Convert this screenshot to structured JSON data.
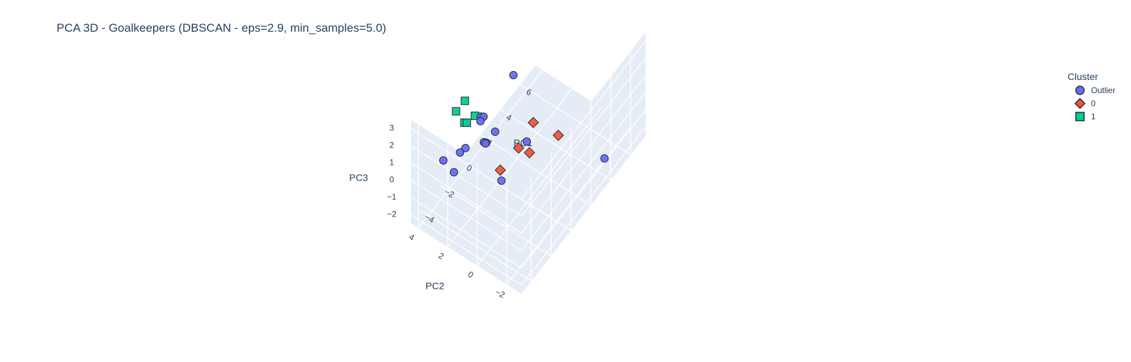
{
  "chart_data": {
    "type": "scatter",
    "subtype": "scatter3d",
    "title": "PCA 3D - Goalkeepers (DBSCAN - eps=2.9, min_samples=5.0)",
    "axes": {
      "x": {
        "label": "PC1",
        "ticks": [
          -4,
          -2,
          0,
          2,
          4,
          6
        ],
        "tick_labels": [
          "−4",
          "−2",
          "0",
          "2",
          "4",
          "6"
        ]
      },
      "y": {
        "label": "PC2",
        "ticks": [
          -2,
          0,
          2,
          4
        ],
        "tick_labels": [
          "−2",
          "0",
          "2",
          "4"
        ]
      },
      "z": {
        "label": "PC3",
        "ticks": [
          -2,
          -1,
          0,
          1,
          2,
          3
        ],
        "tick_labels": [
          "−2",
          "−1",
          "0",
          "1",
          "2",
          "3"
        ]
      }
    },
    "ranges": {
      "x": [
        -5,
        7.5
      ],
      "y": [
        -3,
        4.5
      ],
      "z": [
        -2.5,
        3.5
      ]
    },
    "legend": {
      "title": "Cluster",
      "position": "top-right"
    },
    "grid": true,
    "series": [
      {
        "name": "Outlier",
        "symbol": "circle",
        "color": "#636efa",
        "points": [
          [
            -4.46,
            -1.28,
            2.73
          ],
          [
            -3.21,
            2.79,
            0.09
          ],
          [
            3.74,
            -2.75,
            -1.19
          ],
          [
            -4.38,
            2.72,
            1.67
          ],
          [
            -3.09,
            2.09,
            1.78
          ],
          [
            -0.88,
            -0.59,
            2.0
          ],
          [
            -0.95,
            2.49,
            1.82
          ],
          [
            -0.18,
            2.8,
            -0.39
          ],
          [
            0.08,
            2.82,
            -0.63
          ],
          [
            0.11,
            3.02,
            0.75
          ],
          [
            -0.22,
            2.01,
            0.67
          ],
          [
            -0.73,
            2.66,
            1.3
          ],
          [
            -1.86,
            1.56,
            1.44
          ],
          [
            -3.32,
            2.3,
            1.58
          ],
          [
            3.28,
            3.13,
            0.78
          ]
        ]
      },
      {
        "name": "0",
        "symbol": "diamond",
        "color": "#ef553b",
        "points": [
          [
            -3.58,
            -0.61,
            2.33
          ],
          [
            -1.31,
            -0.32,
            1.79
          ],
          [
            0.75,
            -1.63,
            1.73
          ],
          [
            1.12,
            0.32,
            1.14
          ],
          [
            -0.51,
            -0.52,
            1.04
          ]
        ]
      },
      {
        "name": "1",
        "symbol": "square",
        "color": "#00cc96",
        "points": [
          [
            -1.59,
            3.14,
            2.85
          ],
          [
            -2.49,
            2.4,
            2.64
          ],
          [
            -2.7,
            2.99,
            3.14
          ],
          [
            -2.83,
            2.34,
            2.93
          ],
          [
            -1.13,
            2.77,
            1.85
          ]
        ]
      }
    ]
  }
}
